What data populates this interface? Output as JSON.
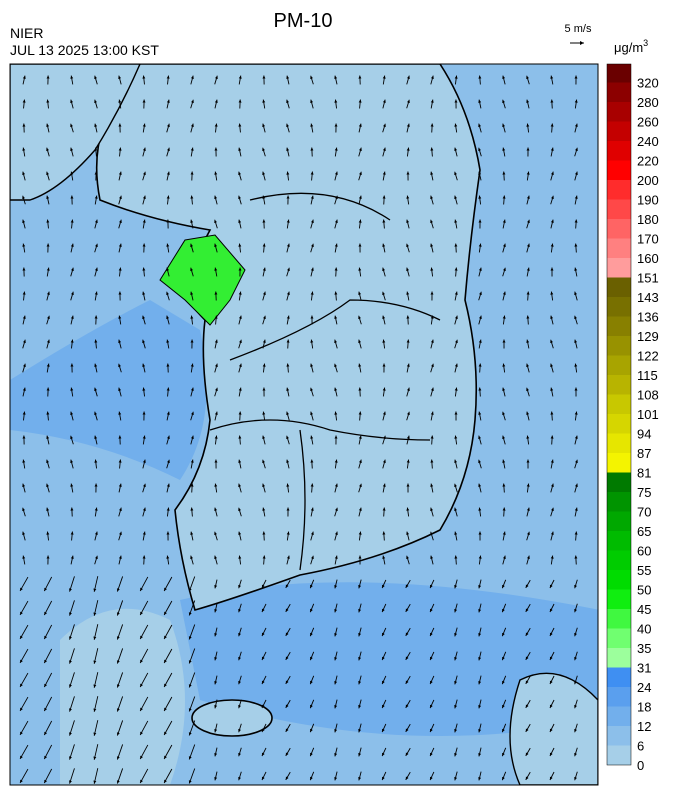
{
  "header": {
    "title": "PM-10",
    "agency": "NIER",
    "datetime": "JUL 13 2025 13:00 KST",
    "wind_scale": "5 m/s"
  },
  "colorbar": {
    "unit": "μg/m",
    "unit_power": "3",
    "labels": [
      0,
      6,
      12,
      18,
      24,
      31,
      35,
      40,
      45,
      50,
      55,
      60,
      65,
      70,
      75,
      81,
      87,
      94,
      101,
      108,
      115,
      122,
      129,
      136,
      143,
      151,
      160,
      170,
      180,
      190,
      200,
      220,
      240,
      260,
      280,
      320
    ],
    "colors": [
      "#a6cfe8",
      "#8cbfea",
      "#72afec",
      "#5a9fee",
      "#3f8ff2",
      "#9cff9c",
      "#70ff70",
      "#40f840",
      "#10ee10",
      "#00dc00",
      "#00cc00",
      "#00bb00",
      "#00a800",
      "#009400",
      "#007a00",
      "#f4f400",
      "#e6e600",
      "#d6d600",
      "#c8c800",
      "#b8b400",
      "#a8a400",
      "#989200",
      "#888000",
      "#787000",
      "#6a6000",
      "#ff9c9c",
      "#ff8080",
      "#ff6464",
      "#ff4848",
      "#ff2c2c",
      "#ff0000",
      "#e00000",
      "#c40000",
      "#a80000",
      "#8c0000",
      "#6a0000"
    ]
  }
}
